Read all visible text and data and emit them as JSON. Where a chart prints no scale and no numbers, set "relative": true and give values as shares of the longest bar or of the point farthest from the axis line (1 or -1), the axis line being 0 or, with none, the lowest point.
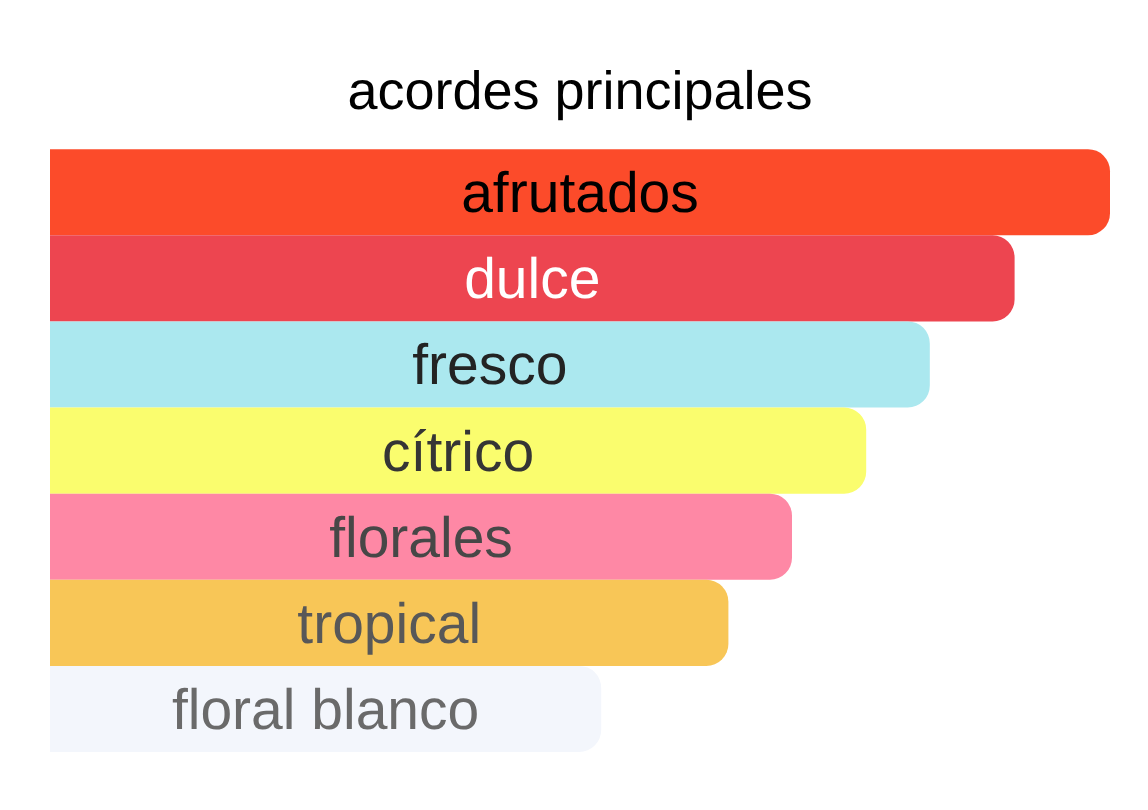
{
  "chart_data": {
    "type": "bar",
    "orientation": "horizontal",
    "relative": true,
    "title": "acordes principales",
    "categories": [
      "afrutados",
      "dulce",
      "fresco",
      "cítrico",
      "florales",
      "tropical",
      "floral blanco"
    ],
    "values": [
      1,
      0.91,
      0.83,
      0.77,
      0.7,
      0.64,
      0.52
    ],
    "colors": [
      "#fc4b2a",
      "#ed4550",
      "#abe8ef",
      "#fafd6e",
      "#fe88a5",
      "#f8c657",
      "#f3f6fc"
    ]
  }
}
